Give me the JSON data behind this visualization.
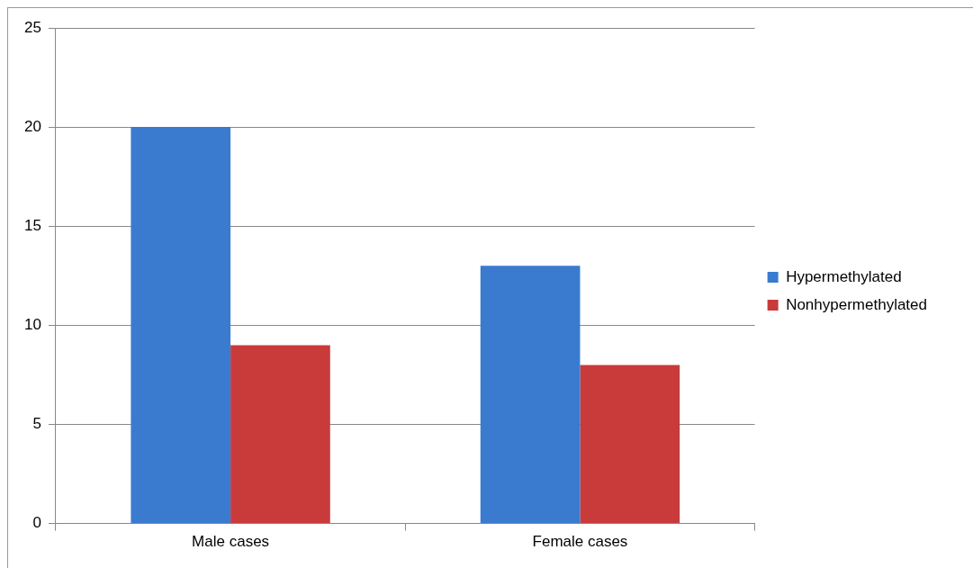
{
  "chart_data": {
    "type": "bar",
    "categories": [
      "Male cases",
      "Female cases"
    ],
    "series": [
      {
        "name": "Hypermethylated",
        "color": "#3a7bd0",
        "values": [
          20,
          13
        ]
      },
      {
        "name": "Nonhypermethylated",
        "color": "#c93a3a",
        "values": [
          9,
          8
        ]
      }
    ],
    "ylim": [
      0,
      25
    ],
    "yticks": [
      0,
      5,
      10,
      15,
      20,
      25
    ],
    "grid": "y",
    "legend": "right"
  }
}
